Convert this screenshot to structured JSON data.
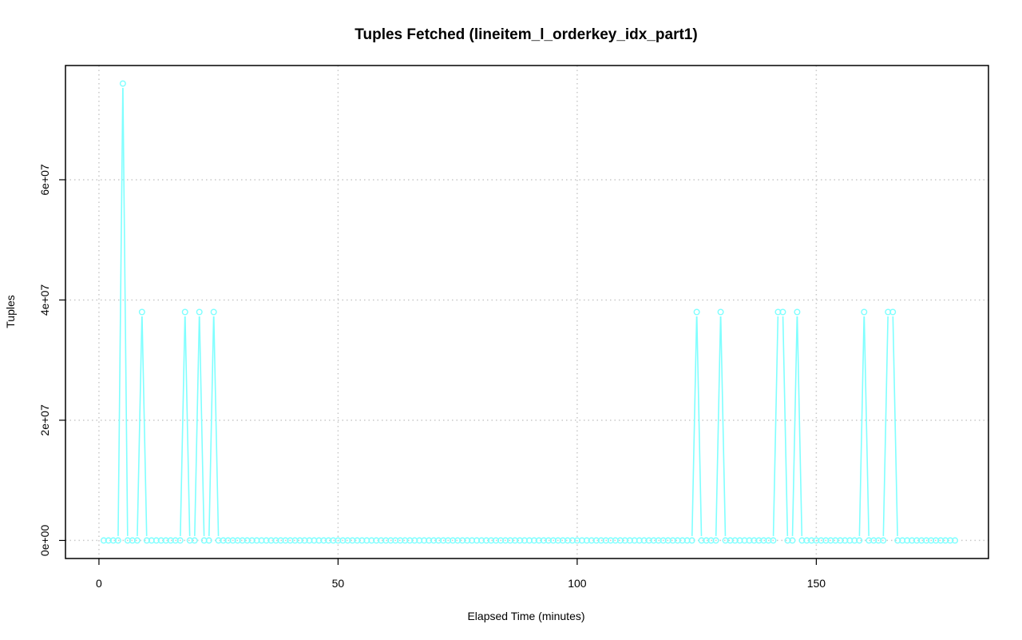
{
  "chart_data": {
    "type": "line",
    "title": "Tuples Fetched (lineitem_l_orderkey_idx_part1)",
    "xlabel": "Elapsed Time (minutes)",
    "ylabel": "Tuples",
    "xlim": [
      -7,
      186
    ],
    "ylim": [
      -3000000,
      79000000
    ],
    "x_ticks": [
      0,
      50,
      100,
      150
    ],
    "x_tick_labels": [
      "0",
      "50",
      "100",
      "150"
    ],
    "y_ticks": [
      0,
      20000000,
      40000000,
      60000000
    ],
    "y_tick_labels": [
      "0e+00",
      "2e+07",
      "4e+07",
      "6e+07"
    ],
    "grid": true,
    "series_color": "#7fffff",
    "x_start": 1,
    "x_end": 179,
    "baseline_value": 0,
    "spikes": [
      {
        "x": 5,
        "y": 76000000
      },
      {
        "x": 9,
        "y": 38000000
      },
      {
        "x": 18,
        "y": 38000000
      },
      {
        "x": 21,
        "y": 38000000
      },
      {
        "x": 24,
        "y": 38000000
      },
      {
        "x": 125,
        "y": 38000000
      },
      {
        "x": 130,
        "y": 38000000
      },
      {
        "x": 142,
        "y": 38000000
      },
      {
        "x": 143,
        "y": 38000000
      },
      {
        "x": 146,
        "y": 38000000
      },
      {
        "x": 160,
        "y": 38000000
      },
      {
        "x": 165,
        "y": 38000000
      },
      {
        "x": 166,
        "y": 38000000
      }
    ]
  }
}
